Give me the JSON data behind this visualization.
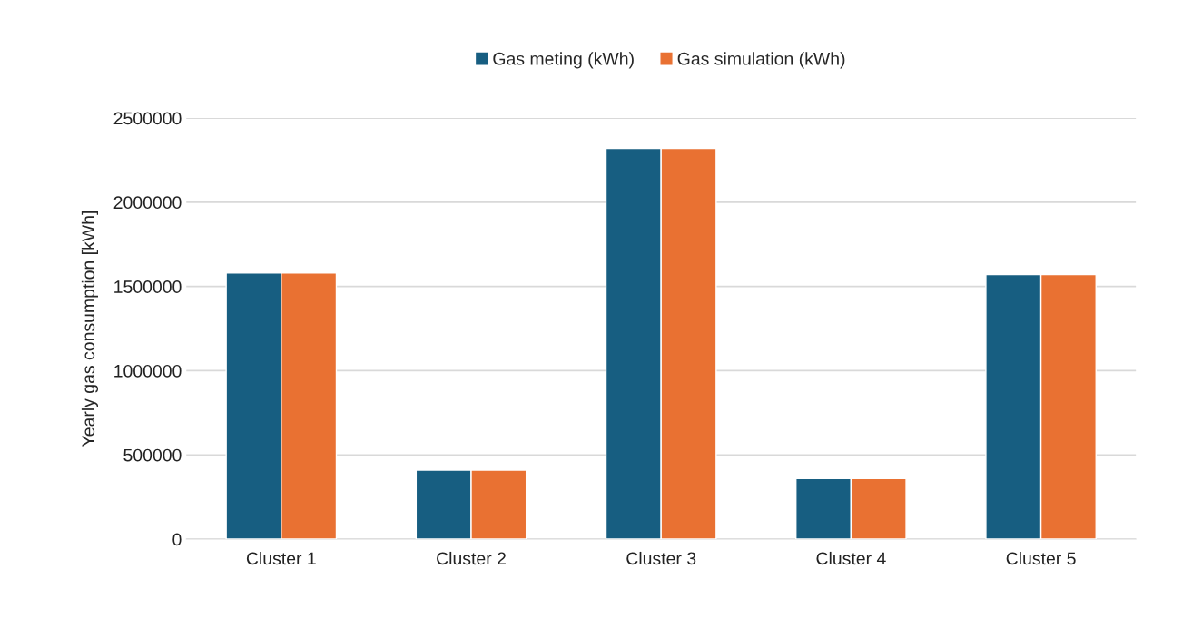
{
  "chart_data": {
    "type": "bar",
    "categories": [
      "Cluster 1",
      "Cluster 2",
      "Cluster 3",
      "Cluster 4",
      "Cluster 5"
    ],
    "series": [
      {
        "name": "Gas meting (kWh)",
        "color": "#175e81",
        "values": [
          1580000,
          410000,
          2320000,
          360000,
          1570000
        ]
      },
      {
        "name": "Gas simulation (kWh)",
        "color": "#e97132",
        "values": [
          1580000,
          410000,
          2320000,
          360000,
          1570000
        ]
      }
    ],
    "ylabel": "Yearly gas consumption [kWh]",
    "ylim": [
      0,
      2500000
    ],
    "yticks": [
      0,
      500000,
      1000000,
      1500000,
      2000000,
      2500000
    ],
    "grid": "y",
    "legend": "top"
  }
}
